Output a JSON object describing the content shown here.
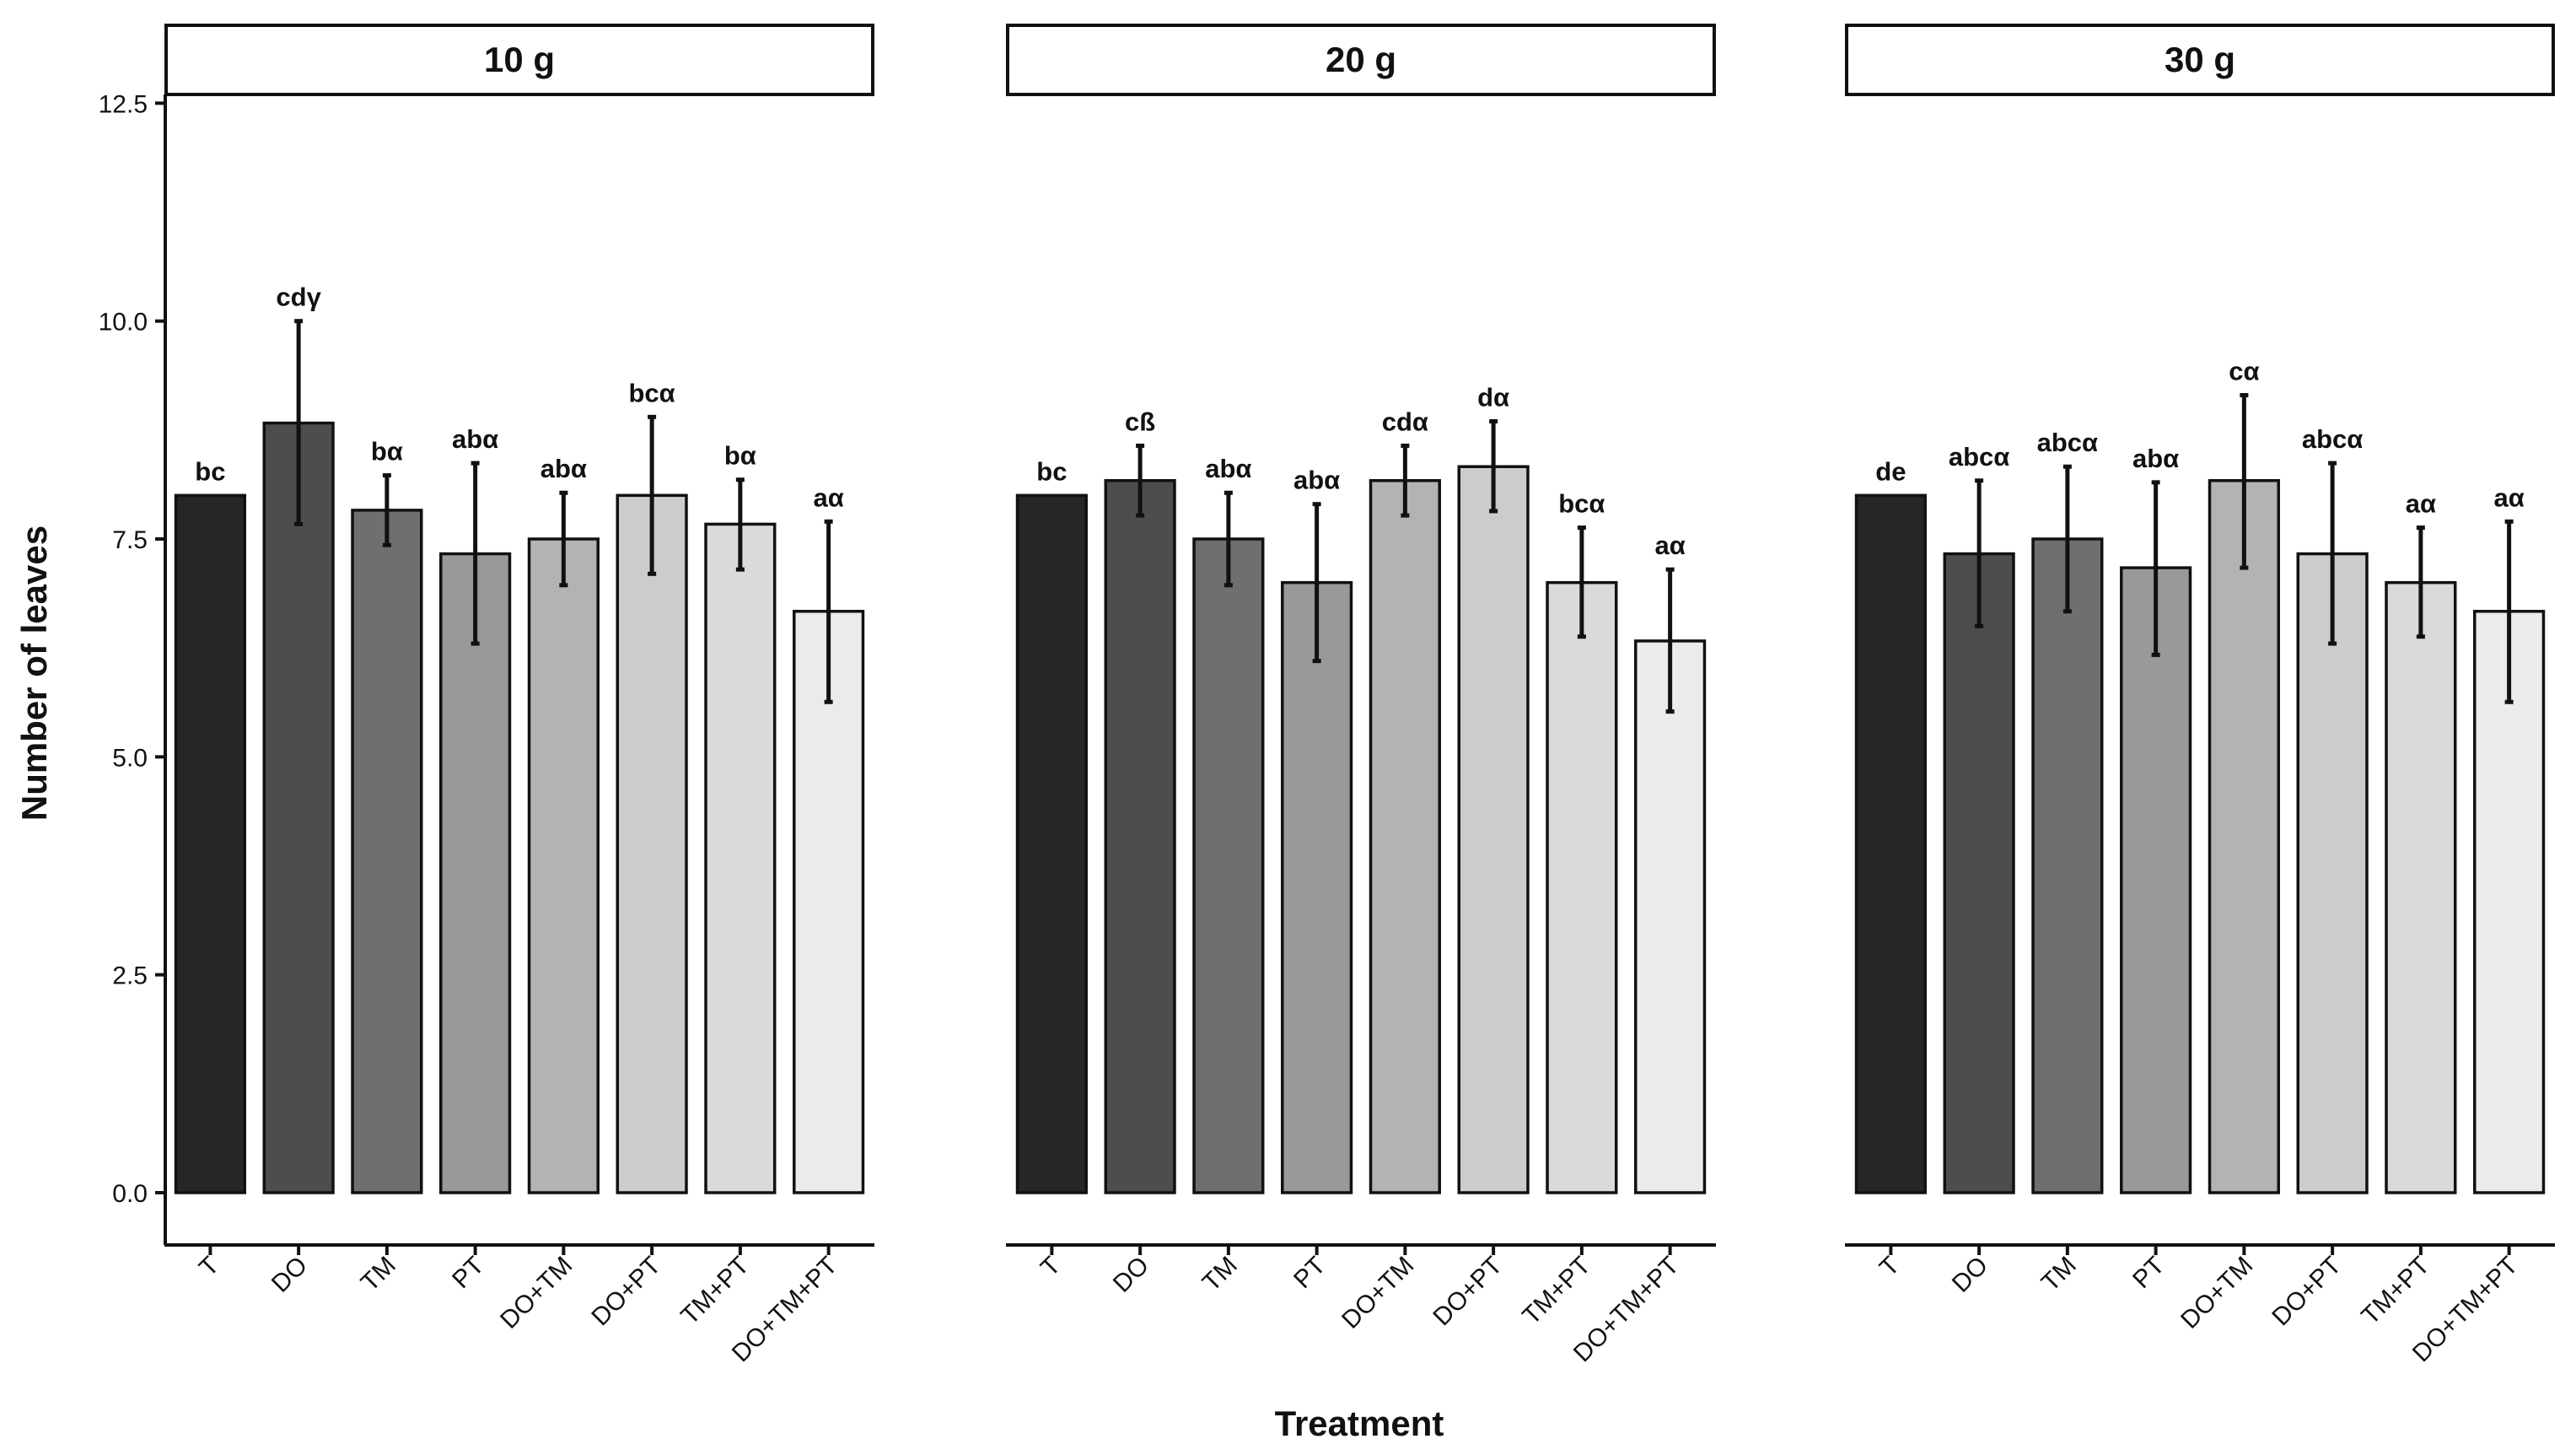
{
  "chart_data": {
    "type": "bar",
    "xlabel": "Treatment",
    "ylabel": "Number of leaves",
    "ylim": [
      -0.6,
      12.6
    ],
    "yticks": [
      "0.0",
      "2.5",
      "5.0",
      "7.5",
      "10.0",
      "12.5"
    ],
    "ytick_values": [
      0,
      2.5,
      5,
      7.5,
      10,
      12.5
    ],
    "categories": [
      "T",
      "DO",
      "TM",
      "PT",
      "DO+TM",
      "DO+PT",
      "TM+PT",
      "DO+TM+PT"
    ],
    "bar_colors": [
      "#262626",
      "#4d4d4d",
      "#6f6f6f",
      "#999999",
      "#b3b3b3",
      "#cccccc",
      "#dadada",
      "#ebebeb"
    ],
    "grid": false,
    "legend": "none",
    "panels": [
      {
        "title": "10 g",
        "values": [
          8.0,
          8.83,
          7.83,
          7.33,
          7.5,
          8.0,
          7.67,
          6.67
        ],
        "error_low": [
          8.0,
          7.67,
          7.43,
          6.3,
          6.97,
          7.1,
          7.15,
          5.63
        ],
        "error_high": [
          8.0,
          10.0,
          8.23,
          8.37,
          8.03,
          8.9,
          8.18,
          7.7
        ],
        "labels": [
          "bc",
          "cdγ",
          "bα",
          "abα",
          "abα",
          "bcα",
          "bα",
          "aα"
        ]
      },
      {
        "title": "20 g",
        "values": [
          8.0,
          8.17,
          7.5,
          7.0,
          8.17,
          8.33,
          7.0,
          6.33
        ],
        "error_low": [
          8.0,
          7.77,
          6.97,
          6.1,
          7.77,
          7.82,
          6.38,
          5.52
        ],
        "error_high": [
          8.0,
          8.57,
          8.03,
          7.9,
          8.57,
          8.85,
          7.63,
          7.15
        ],
        "labels": [
          "bc",
          "cß",
          "abα",
          "abα",
          "cdα",
          "dα",
          "bcα",
          "aα"
        ]
      },
      {
        "title": "30 g",
        "values": [
          8.0,
          7.33,
          7.5,
          7.17,
          8.17,
          7.33,
          7.0,
          6.67
        ],
        "error_low": [
          8.0,
          6.5,
          6.67,
          6.17,
          7.17,
          6.3,
          6.38,
          5.63
        ],
        "error_high": [
          8.0,
          8.17,
          8.33,
          8.15,
          9.15,
          8.37,
          7.63,
          7.7
        ],
        "labels": [
          "de",
          "abcα",
          "abcα",
          "abα",
          "cα",
          "abcα",
          "aα",
          "aα"
        ]
      }
    ]
  }
}
